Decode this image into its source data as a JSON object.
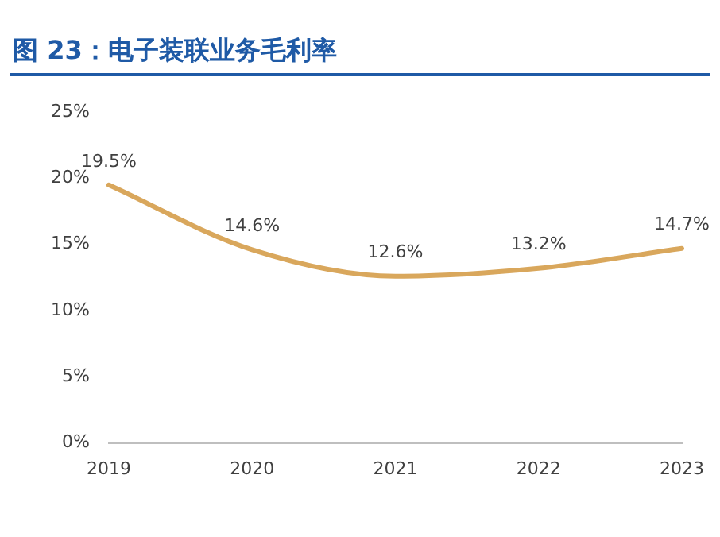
{
  "chart_data": {
    "type": "line",
    "title": "图 23：电子装联业务毛利率",
    "categories": [
      "2019",
      "2020",
      "2021",
      "2022",
      "2023"
    ],
    "series": [
      {
        "color": "#d9a75c",
        "values": [
          19.5,
          14.6,
          12.6,
          13.2,
          14.7
        ],
        "value_labels": [
          "19.5%",
          "14.6%",
          "12.6%",
          "13.2%",
          "14.7%"
        ]
      }
    ],
    "ylim": [
      0,
      25
    ],
    "yticks": [
      {
        "value": 0,
        "label": "0%"
      },
      {
        "value": 5,
        "label": "5%"
      },
      {
        "value": 10,
        "label": "10%"
      },
      {
        "value": 15,
        "label": "15%"
      },
      {
        "value": 20,
        "label": "20%"
      },
      {
        "value": 25,
        "label": "25%"
      }
    ],
    "grid": false,
    "legend": false,
    "marker": "none",
    "line_style": "solid"
  }
}
